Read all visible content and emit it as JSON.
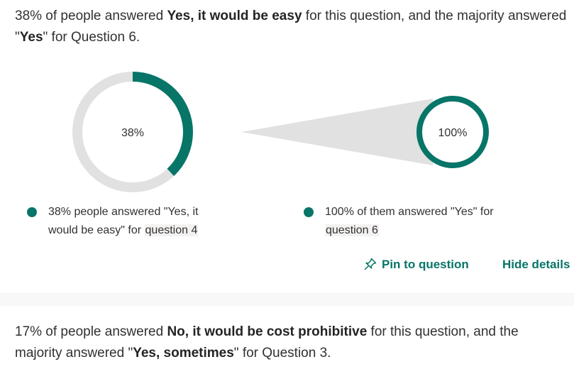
{
  "insight1": {
    "pre": "38% of people answered ",
    "bold1": "Yes, it would be easy",
    "mid": " for this question, and the majority answered \"",
    "bold2": "Yes",
    "post": "\" for Question 6."
  },
  "donut_left": {
    "label": "38%",
    "percent": 38,
    "color": "#077568",
    "track": "#e1e1e1"
  },
  "donut_right": {
    "label": "100%",
    "percent": 100,
    "color": "#077568",
    "funnel": "#e1e1e1"
  },
  "legend_left": {
    "line1": "38% people answered \"Yes, it",
    "line2a": "would be easy\" for ",
    "line2b": "question 4"
  },
  "legend_right": {
    "line1": "100% of them answered \"Yes\" for",
    "line2": "question 6"
  },
  "actions": {
    "pin_label": "Pin to question",
    "hide_label": "Hide details"
  },
  "insight2": {
    "pre": "17% of people answered ",
    "bold1": "No, it would be cost prohibitive",
    "mid": " for this question, and the majority answered \"",
    "bold2": "Yes, sometimes",
    "post": "\" for Question 3."
  }
}
